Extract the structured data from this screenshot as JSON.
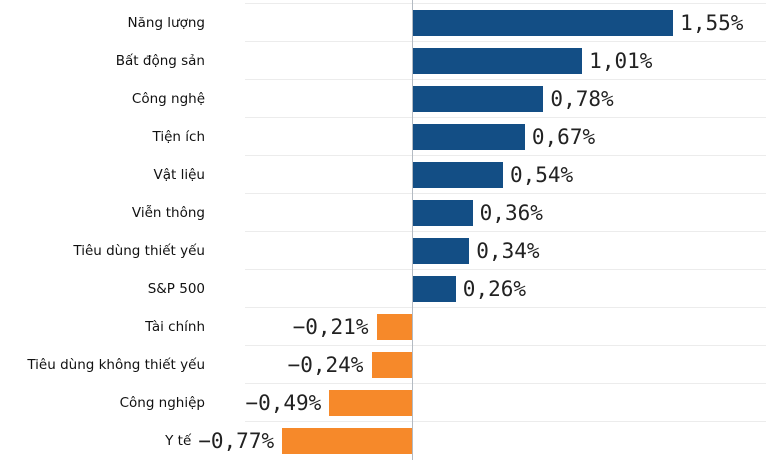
{
  "chart_data": {
    "type": "bar",
    "orientation": "horizontal",
    "title": "",
    "xlabel": "",
    "ylabel": "",
    "categories": [
      "Năng lượng",
      "Bất động sản",
      "Công nghệ",
      "Tiện ích",
      "Vật liệu",
      "Viễn thông",
      "Tiêu dùng thiết yếu",
      "S&P 500",
      "Tài chính",
      "Tiêu dùng không thiết yếu",
      "Công nghiệp",
      "Y tế"
    ],
    "values": [
      1.55,
      1.01,
      0.78,
      0.67,
      0.54,
      0.36,
      0.34,
      0.26,
      -0.21,
      -0.24,
      -0.49,
      -0.77
    ],
    "value_labels": [
      "1,55%",
      "1,01%",
      "0,78%",
      "0,67%",
      "0,54%",
      "0,36%",
      "0,34%",
      "0,26%",
      "−0,21%",
      "−0,24%",
      "−0,49%",
      "−0,77%"
    ],
    "unit": "%",
    "decimal_separator": ",",
    "xlim": [
      -1.0,
      2.1
    ],
    "grid": "horizontal-row-separators",
    "legend": "none",
    "colors": {
      "positive_bar": "#134e85",
      "negative_bar": "#f6892a",
      "gridline": "#ececec",
      "axis_line": "#b3bac2",
      "category_text": "#111111",
      "value_text": "#222222",
      "background": "#ffffff"
    }
  }
}
